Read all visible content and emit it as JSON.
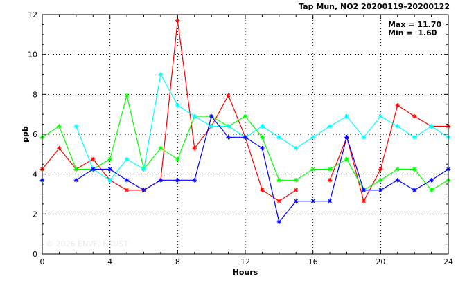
{
  "chart_data": {
    "type": "line",
    "title": "Tap Mun, NO2 20200119–20200122",
    "stats": {
      "max_label": "Max = 11.70",
      "min_label": "Min =  1.60"
    },
    "watermark": "© 2026 ENVF, HKUST",
    "xlabel": "Hours",
    "ylabel": "ppb",
    "xlim": [
      0,
      24
    ],
    "ylim": [
      0,
      12
    ],
    "x_ticks": [
      0,
      4,
      8,
      12,
      16,
      20,
      24
    ],
    "y_ticks": [
      0,
      2,
      4,
      6,
      8,
      10,
      12
    ],
    "grid": true,
    "x": [
      0,
      1,
      2,
      3,
      4,
      5,
      6,
      7,
      8,
      9,
      10,
      11,
      12,
      13,
      14,
      15,
      16,
      17,
      18,
      19,
      20,
      21,
      22,
      23,
      24
    ],
    "series": [
      {
        "color": "#ff0000",
        "values": [
          4.25,
          5.3,
          4.25,
          4.75,
          3.7,
          3.2,
          3.2,
          3.7,
          11.7,
          5.3,
          6.4,
          7.95,
          5.85,
          3.2,
          2.65,
          3.2,
          null,
          3.7,
          5.85,
          2.65,
          4.25,
          7.45,
          6.9,
          6.4,
          6.4
        ]
      },
      {
        "color": "#00ff00",
        "values": [
          5.85,
          6.4,
          4.25,
          4.25,
          4.75,
          7.95,
          4.25,
          5.3,
          4.75,
          6.9,
          6.9,
          6.4,
          6.9,
          5.85,
          3.7,
          3.7,
          4.25,
          4.25,
          4.75,
          3.2,
          3.7,
          4.25,
          4.25,
          3.2,
          3.7
        ]
      },
      {
        "color": "#00ffff",
        "values": [
          3.7,
          null,
          6.4,
          4.25,
          3.7,
          4.75,
          4.25,
          9.0,
          7.45,
          6.9,
          6.4,
          6.4,
          5.85,
          6.4,
          5.85,
          5.3,
          5.85,
          6.4,
          6.9,
          5.85,
          6.9,
          6.4,
          5.85,
          6.4,
          5.85
        ]
      },
      {
        "color": "#0000ff",
        "values": [
          3.7,
          null,
          3.7,
          4.25,
          4.25,
          3.7,
          3.2,
          3.7,
          3.7,
          3.7,
          6.9,
          5.85,
          5.85,
          5.3,
          1.6,
          2.65,
          2.65,
          2.65,
          5.85,
          3.2,
          3.2,
          3.7,
          3.2,
          3.7,
          4.25
        ]
      }
    ]
  }
}
